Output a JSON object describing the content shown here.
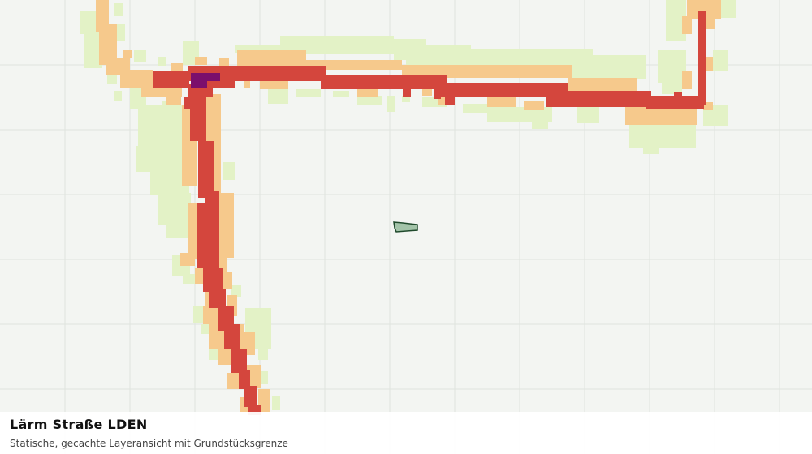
{
  "layer": {
    "title": "Lärm Straße LDEN",
    "subtitle": "Statische, gecachte Layeransicht mit Grundstücksgrenze"
  },
  "colors": {
    "background": "#f3f5f2",
    "grid": "#dfe3de",
    "noise_low": "#e3f2c6",
    "noise_mid": "#f6c98c",
    "noise_high": "#d4463d",
    "noise_max": "#7b0f6c",
    "parcel_fill": "#a3c4a9",
    "parcel_stroke": "#1f4a2c"
  },
  "icons": {
    "parcel": "parcel-outline-icon"
  }
}
